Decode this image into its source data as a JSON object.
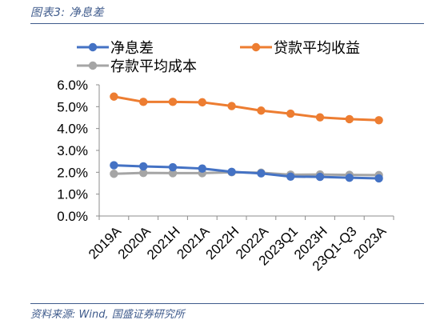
{
  "figure": {
    "title": "图表3:  净息差",
    "source": "资料来源:  Wind,  国盛证券研究所"
  },
  "chart_data": {
    "type": "line",
    "categories": [
      "2019A",
      "2020A",
      "2021H",
      "2021A",
      "2022H",
      "2022A",
      "2023Q1",
      "2023H",
      "23Q1-Q3",
      "2023A"
    ],
    "series": [
      {
        "name": "净息差",
        "color": "#4472c4",
        "values": [
          2.32,
          2.27,
          2.23,
          2.17,
          2.02,
          1.95,
          1.8,
          1.79,
          1.75,
          1.72
        ]
      },
      {
        "name": "贷款平均收益",
        "color": "#ed7d31",
        "values": [
          5.46,
          5.22,
          5.22,
          5.2,
          5.03,
          4.82,
          4.68,
          4.51,
          4.43,
          4.38
        ]
      },
      {
        "name": "存款平均成本",
        "color": "#a5a5a5",
        "values": [
          1.93,
          1.97,
          1.96,
          1.96,
          2.0,
          1.98,
          1.89,
          1.9,
          1.88,
          1.87
        ]
      }
    ],
    "y_tick_labels": [
      "0.0%",
      "1.0%",
      "2.0%",
      "3.0%",
      "4.0%",
      "5.0%",
      "6.0%"
    ],
    "ylim": [
      0,
      6
    ],
    "grid": false,
    "legend_position": "top-left"
  }
}
